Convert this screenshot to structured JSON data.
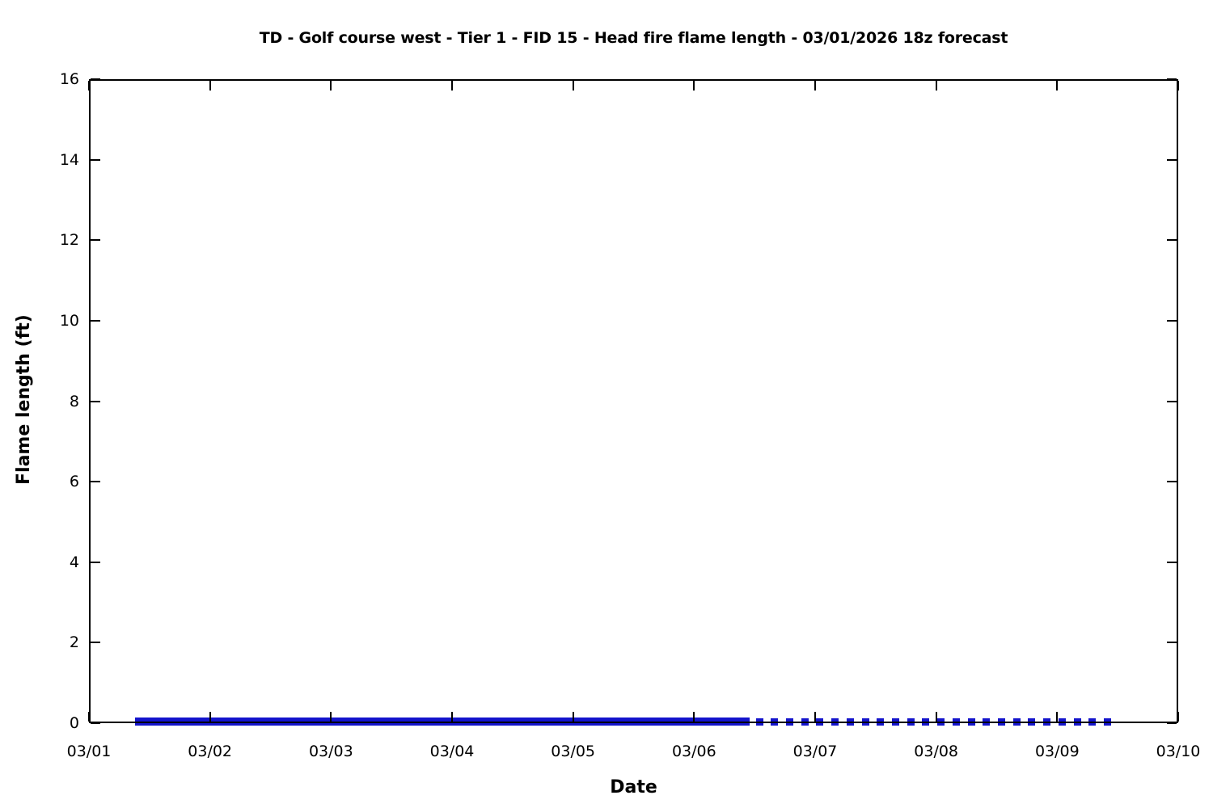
{
  "chart_data": {
    "type": "line",
    "title": "TD - Golf course west - Tier 1 - FID 15 - Head fire flame length - 03/01/2026 18z forecast",
    "xlabel": "Date",
    "ylabel": "Flame length (ft)",
    "x_tick_labels": [
      "03/01",
      "03/02",
      "03/03",
      "03/04",
      "03/05",
      "03/06",
      "03/07",
      "03/08",
      "03/09",
      "03/10"
    ],
    "y_tick_labels": [
      "0",
      "2",
      "4",
      "6",
      "8",
      "10",
      "12",
      "14",
      "16"
    ],
    "ylim": [
      0,
      16
    ],
    "xlim_days": [
      0,
      9
    ],
    "grid": false,
    "legend": null,
    "frame": "full box with inward tick marks on all four sides",
    "colors": {
      "line": "#1414cc",
      "axis": "#000000",
      "background": "#ffffff",
      "text": "#000000"
    },
    "series": [
      {
        "name": "Head fire flame length (solid segment)",
        "style": "solid-thick-band",
        "y_value": 0,
        "x_start_day": 0.38,
        "x_end_day": 5.46
      },
      {
        "name": "Head fire flame length (extended forecast, square dashes)",
        "style": "square-dash-markers",
        "y_value": 0,
        "x_start_day": 5.54,
        "x_end_day": 8.42,
        "marker_step_day": 0.125
      }
    ]
  }
}
